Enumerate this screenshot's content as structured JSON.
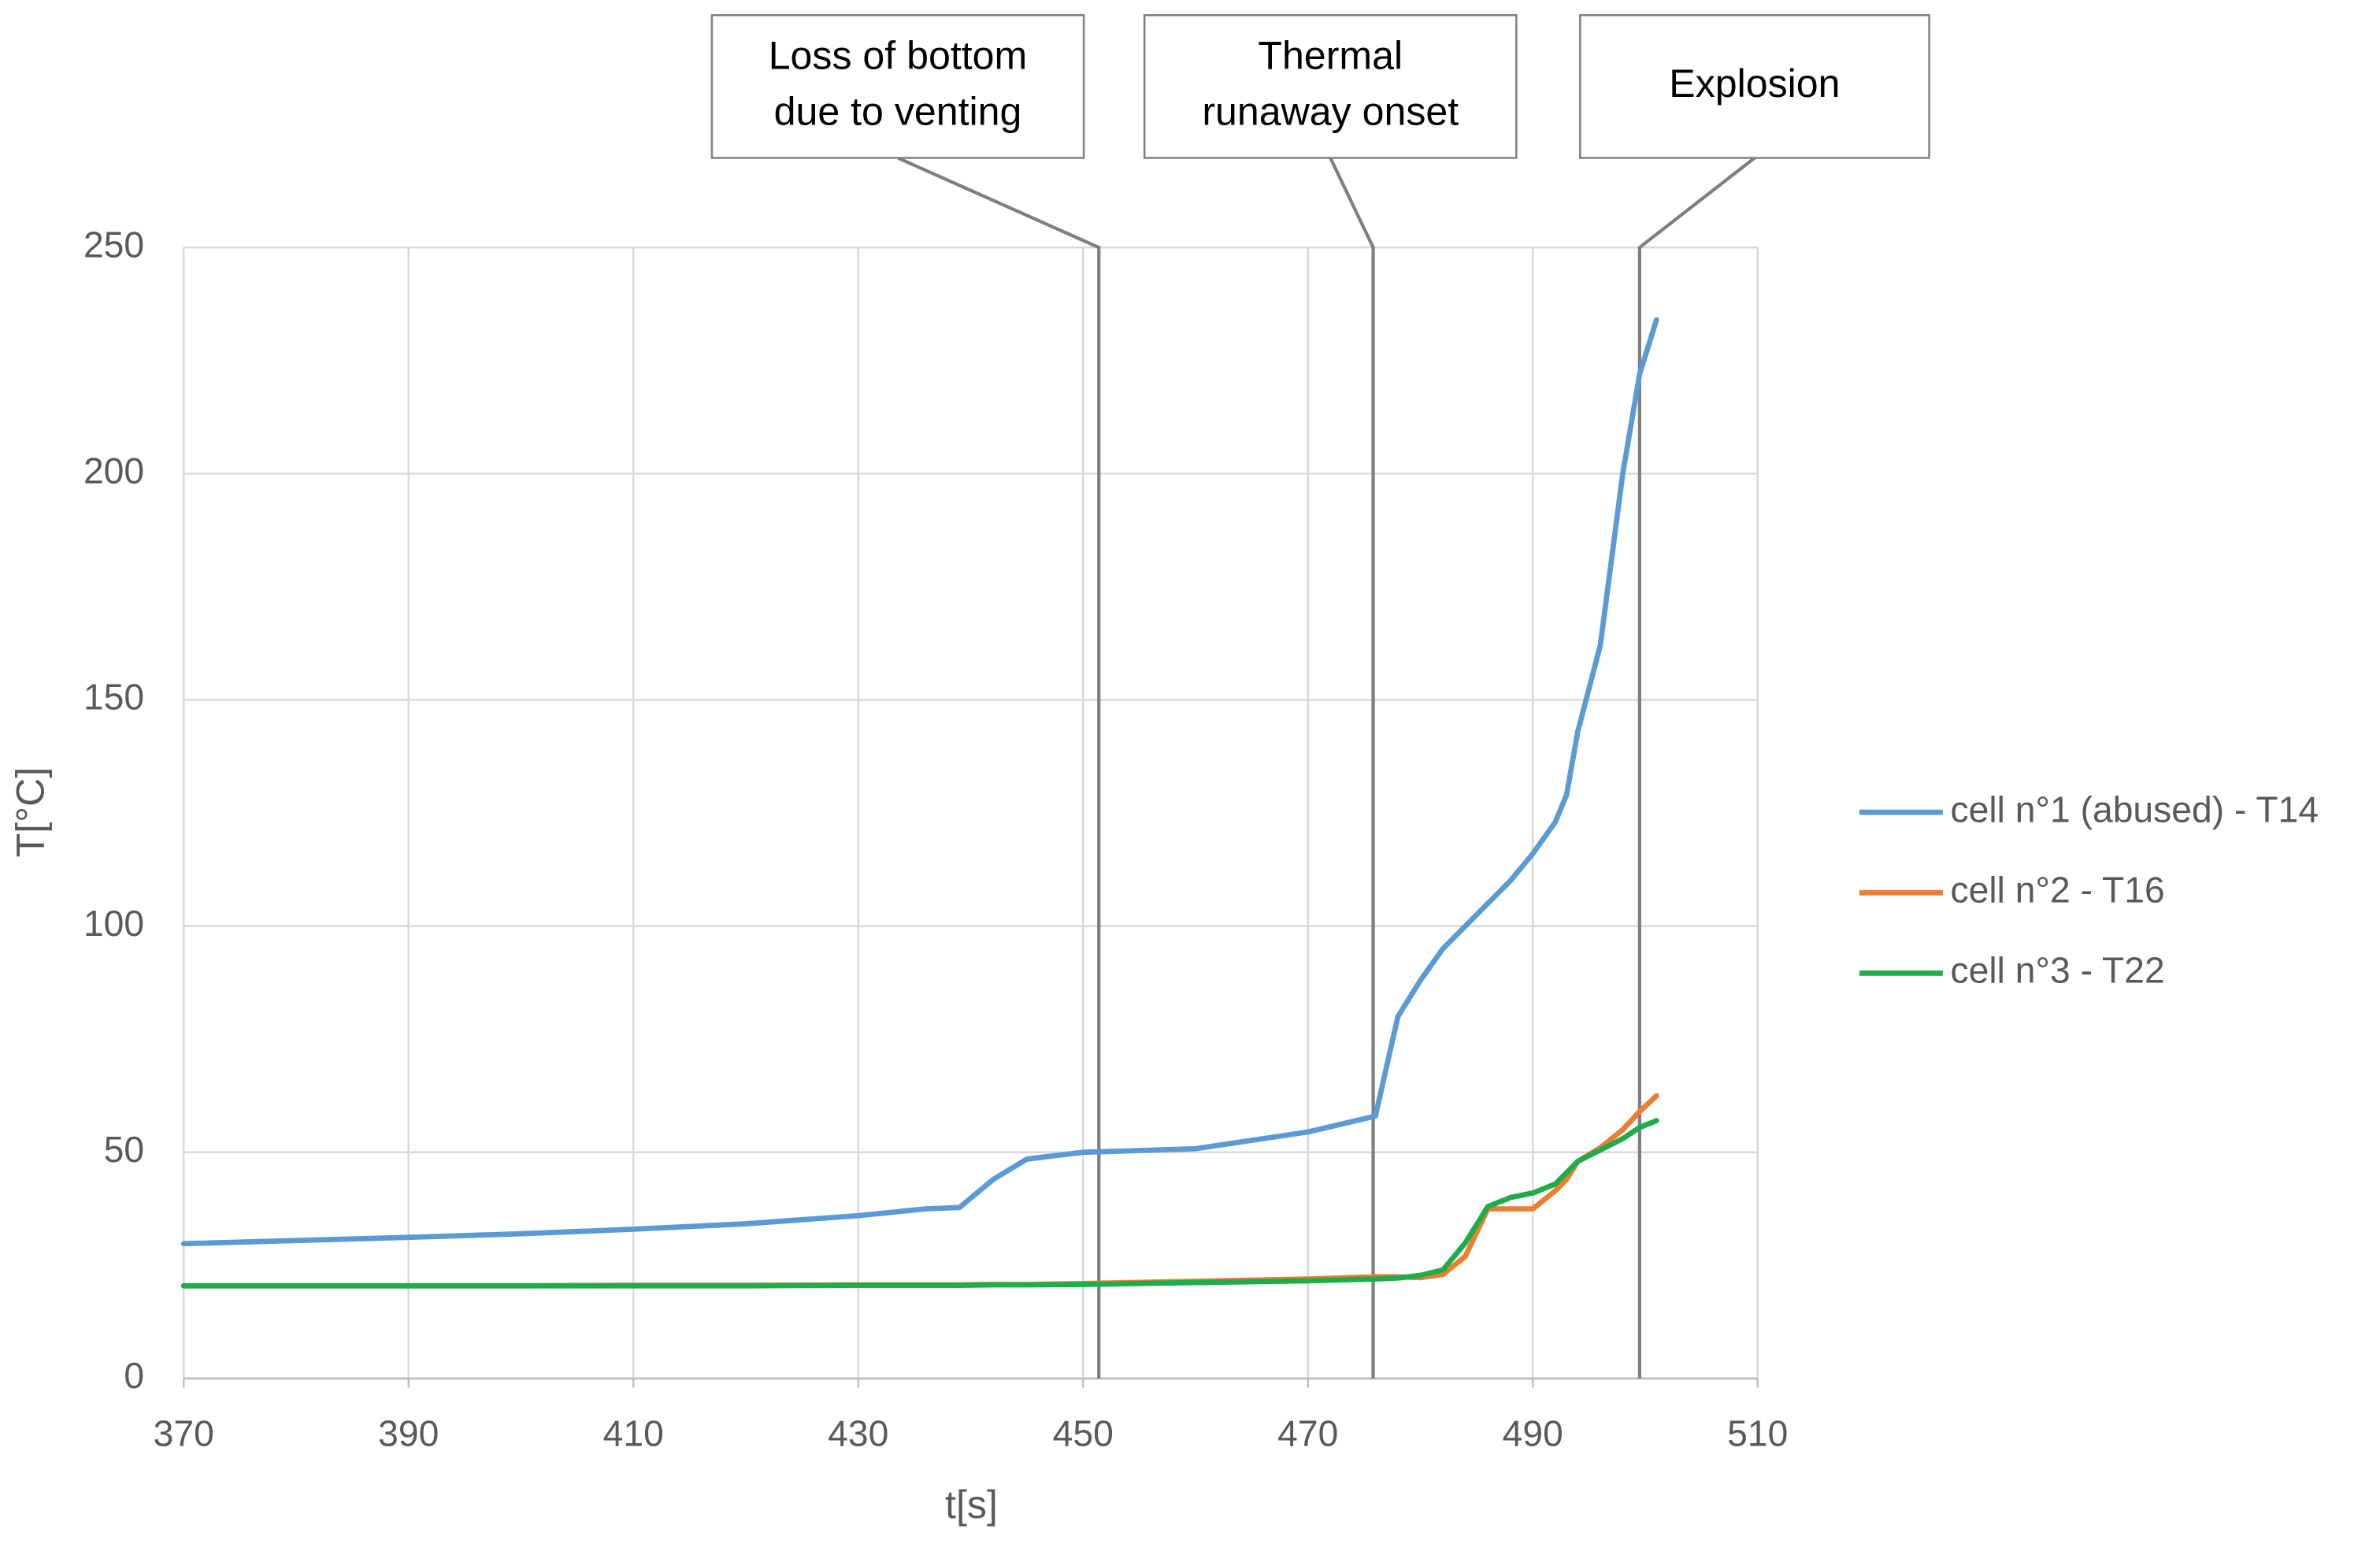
{
  "chart_data": {
    "type": "line",
    "x_label": "t[s]",
    "y_label": "T[°C]",
    "x": [
      370,
      380,
      390,
      400,
      410,
      420,
      430,
      436,
      439,
      442,
      445,
      450,
      460,
      470,
      476,
      478,
      480,
      482,
      484,
      486,
      488,
      490,
      492,
      493,
      494,
      496,
      498,
      499.5,
      501
    ],
    "series": [
      {
        "name": "cell n°1 (abused) - T14",
        "color": "#5b9bd5",
        "values": [
          29.8,
          30.5,
          31.2,
          32,
          33,
          34.2,
          36,
          37.5,
          37.8,
          44,
          48.5,
          50,
          50.8,
          54.5,
          58,
          80,
          88,
          95,
          100,
          105,
          110,
          116,
          123,
          129,
          143,
          162,
          200,
          222,
          234
        ]
      },
      {
        "name": "cell n°2 - T16",
        "color": "#ed7d31",
        "values": [
          20.5,
          20.5,
          20.5,
          20.5,
          20.6,
          20.6,
          20.7,
          20.7,
          20.7,
          20.8,
          20.8,
          21,
          21.5,
          22,
          22.5,
          22.5,
          22.3,
          23,
          27,
          37.5,
          37.5,
          37.5,
          41.5,
          44,
          48,
          51,
          55,
          59,
          62.5
        ]
      },
      {
        "name": "cell n°3 - T22",
        "color": "#1fad4b",
        "values": [
          20.5,
          20.5,
          20.5,
          20.5,
          20.5,
          20.5,
          20.6,
          20.6,
          20.6,
          20.7,
          20.7,
          20.8,
          21.2,
          21.6,
          22,
          22.2,
          22.8,
          24,
          30,
          38,
          40,
          41,
          43,
          45.5,
          48,
          50.5,
          53,
          55.5,
          57
        ]
      }
    ],
    "xlim": [
      370,
      510
    ],
    "xticks": [
      370,
      390,
      410,
      430,
      450,
      470,
      490,
      510
    ],
    "ylim": [
      0,
      250
    ],
    "yticks": [
      0,
      50,
      100,
      150,
      200,
      250
    ],
    "grid": true,
    "legend": "right",
    "annotations": [
      {
        "lines": [
          "Loss of bottom",
          "due to venting"
        ],
        "x": 451.4
      },
      {
        "lines": [
          "Thermal",
          "runaway onset"
        ],
        "x": 475.8
      },
      {
        "lines": [
          "Explosion"
        ],
        "x": 499.5
      }
    ]
  }
}
